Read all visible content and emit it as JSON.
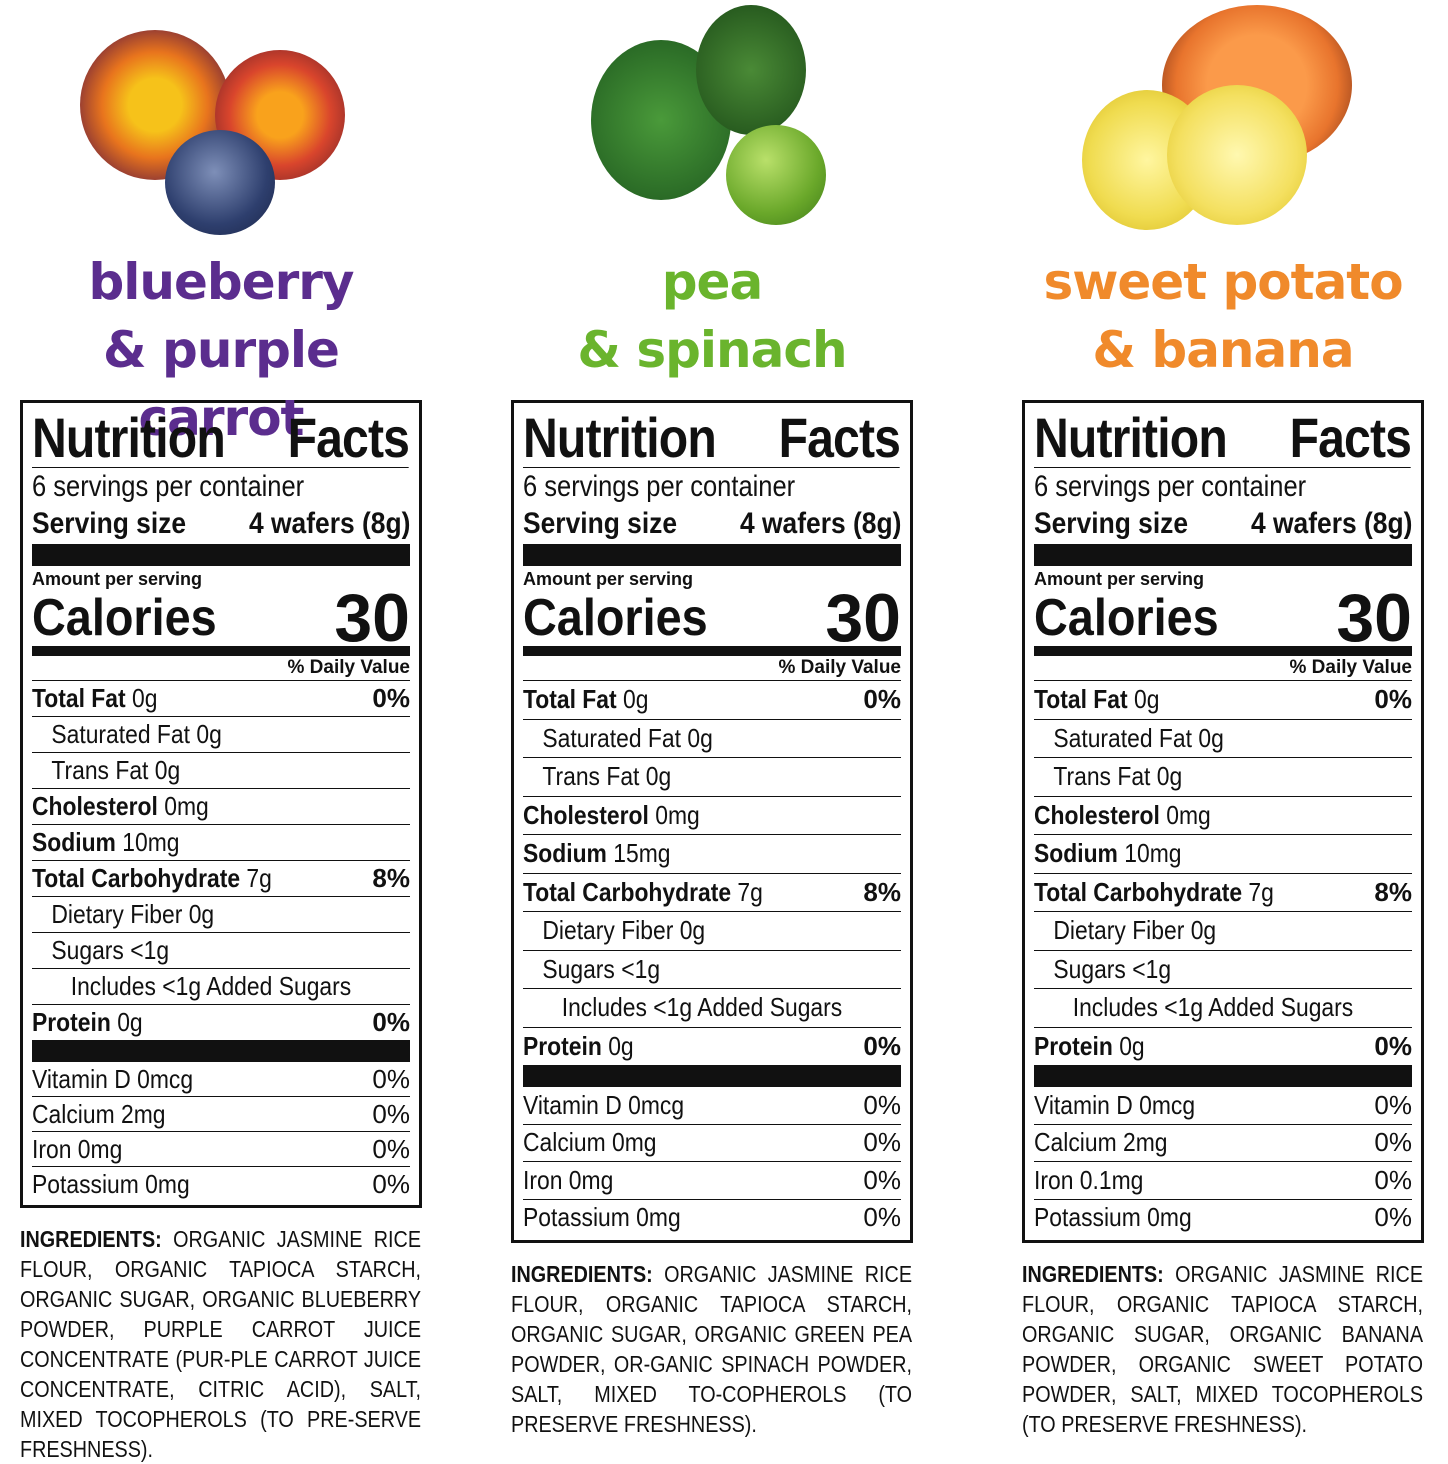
{
  "colors": {
    "blueberry": "#5b2d8e",
    "pea": "#6ab42d",
    "sweet_potato": "#f08a2b"
  },
  "products": [
    {
      "title_line1": "blueberry",
      "title_line2": "& purple carrot",
      "color": "#5b2d8e",
      "image": "blueberry-purple-carrot-photo",
      "label": {
        "heading_left": "Nutrition",
        "heading_right": "Facts",
        "servings": "6 servings per container",
        "serving_size_label": "Serving size",
        "serving_size_value": "4 wafers (8g)",
        "amount_per_serving": "Amount per serving",
        "calories_label": "Calories",
        "calories_value": "30",
        "daily_value_header": "% Daily Value",
        "rows": [
          {
            "name": "Total Fat",
            "amount": "0g",
            "dv": "0%",
            "bold": true,
            "indent": 0
          },
          {
            "name": "Saturated Fat",
            "amount": "0g",
            "dv": "",
            "bold": false,
            "indent": 1
          },
          {
            "name": "Trans Fat",
            "amount": "0g",
            "dv": "",
            "bold": false,
            "indent": 1
          },
          {
            "name": "Cholesterol",
            "amount": "0mg",
            "dv": "",
            "bold": true,
            "indent": 0
          },
          {
            "name": "Sodium",
            "amount": "10mg",
            "dv": "",
            "bold": true,
            "indent": 0
          },
          {
            "name": "Total Carbohydrate",
            "amount": "7g",
            "dv": "8%",
            "bold": true,
            "indent": 0
          },
          {
            "name": "Dietary Fiber",
            "amount": "0g",
            "dv": "",
            "bold": false,
            "indent": 1
          },
          {
            "name": "Sugars",
            "amount": "<1g",
            "dv": "",
            "bold": false,
            "indent": 1
          },
          {
            "name": "Includes <1g Added Sugars",
            "amount": "",
            "dv": "",
            "bold": false,
            "indent": 2
          },
          {
            "name": "Protein",
            "amount": "0g",
            "dv": "0%",
            "bold": true,
            "indent": 0
          }
        ],
        "vitamins": [
          {
            "name": "Vitamin D 0mcg",
            "dv": "0%"
          },
          {
            "name": "Calcium 2mg",
            "dv": "0%"
          },
          {
            "name": "Iron 0mg",
            "dv": "0%"
          },
          {
            "name": "Potassium 0mg",
            "dv": "0%"
          }
        ]
      },
      "ingredients_label": "INGREDIENTS:",
      "ingredients": "ORGANIC JASMINE RICE FLOUR, ORGANIC TAPIOCA STARCH, ORGANIC SUGAR, ORGANIC BLUEBERRY POWDER, PURPLE CARROT JUICE CONCENTRATE (PUR-PLE CARROT JUICE CONCENTRATE, CITRIC ACID), SALT, MIXED TOCOPHEROLS (TO PRE-SERVE FRESHNESS)."
    },
    {
      "title_line1": "pea",
      "title_line2": "& spinach",
      "color": "#6ab42d",
      "image": "pea-spinach-photo",
      "label": {
        "heading_left": "Nutrition",
        "heading_right": "Facts",
        "servings": "6 servings per container",
        "serving_size_label": "Serving size",
        "serving_size_value": "4 wafers (8g)",
        "amount_per_serving": "Amount per serving",
        "calories_label": "Calories",
        "calories_value": "30",
        "daily_value_header": "% Daily Value",
        "rows": [
          {
            "name": "Total Fat",
            "amount": "0g",
            "dv": "0%",
            "bold": true,
            "indent": 0
          },
          {
            "name": "Saturated Fat",
            "amount": "0g",
            "dv": "",
            "bold": false,
            "indent": 1
          },
          {
            "name": "Trans Fat",
            "amount": "0g",
            "dv": "",
            "bold": false,
            "indent": 1
          },
          {
            "name": "Cholesterol",
            "amount": "0mg",
            "dv": "",
            "bold": true,
            "indent": 0
          },
          {
            "name": "Sodium",
            "amount": "15mg",
            "dv": "",
            "bold": true,
            "indent": 0
          },
          {
            "name": "Total Carbohydrate",
            "amount": "7g",
            "dv": "8%",
            "bold": true,
            "indent": 0
          },
          {
            "name": "Dietary Fiber",
            "amount": "0g",
            "dv": "",
            "bold": false,
            "indent": 1
          },
          {
            "name": "Sugars",
            "amount": "<1g",
            "dv": "",
            "bold": false,
            "indent": 1
          },
          {
            "name": "Includes <1g Added Sugars",
            "amount": "",
            "dv": "",
            "bold": false,
            "indent": 2
          },
          {
            "name": "Protein",
            "amount": "0g",
            "dv": "0%",
            "bold": true,
            "indent": 0
          }
        ],
        "vitamins": [
          {
            "name": "Vitamin D 0mcg",
            "dv": "0%"
          },
          {
            "name": "Calcium 0mg",
            "dv": "0%"
          },
          {
            "name": "Iron 0mg",
            "dv": "0%"
          },
          {
            "name": "Potassium 0mg",
            "dv": "0%"
          }
        ]
      },
      "ingredients_label": "INGREDIENTS:",
      "ingredients": "ORGANIC JASMINE RICE FLOUR, ORGANIC TAPIOCA STARCH, ORGANIC SUGAR, ORGANIC GREEN PEA POWDER, OR-GANIC SPINACH POWDER, SALT, MIXED TO-COPHEROLS (TO PRESERVE FRESHNESS)."
    },
    {
      "title_line1": "sweet potato",
      "title_line2": "& banana",
      "color": "#f08a2b",
      "image": "sweet-potato-banana-photo",
      "label": {
        "heading_left": "Nutrition",
        "heading_right": "Facts",
        "servings": "6 servings per container",
        "serving_size_label": "Serving size",
        "serving_size_value": "4 wafers (8g)",
        "amount_per_serving": "Amount per serving",
        "calories_label": "Calories",
        "calories_value": "30",
        "daily_value_header": "% Daily Value",
        "rows": [
          {
            "name": "Total Fat",
            "amount": "0g",
            "dv": "0%",
            "bold": true,
            "indent": 0
          },
          {
            "name": "Saturated Fat",
            "amount": "0g",
            "dv": "",
            "bold": false,
            "indent": 1
          },
          {
            "name": "Trans Fat",
            "amount": "0g",
            "dv": "",
            "bold": false,
            "indent": 1
          },
          {
            "name": "Cholesterol",
            "amount": "0mg",
            "dv": "",
            "bold": true,
            "indent": 0
          },
          {
            "name": "Sodium",
            "amount": "10mg",
            "dv": "",
            "bold": true,
            "indent": 0
          },
          {
            "name": "Total Carbohydrate",
            "amount": "7g",
            "dv": "8%",
            "bold": true,
            "indent": 0
          },
          {
            "name": "Dietary Fiber",
            "amount": "0g",
            "dv": "",
            "bold": false,
            "indent": 1
          },
          {
            "name": "Sugars",
            "amount": "<1g",
            "dv": "",
            "bold": false,
            "indent": 1
          },
          {
            "name": "Includes <1g Added Sugars",
            "amount": "",
            "dv": "",
            "bold": false,
            "indent": 2
          },
          {
            "name": "Protein",
            "amount": "0g",
            "dv": "0%",
            "bold": true,
            "indent": 0
          }
        ],
        "vitamins": [
          {
            "name": "Vitamin D 0mcg",
            "dv": "0%"
          },
          {
            "name": "Calcium 2mg",
            "dv": "0%"
          },
          {
            "name": "Iron 0.1mg",
            "dv": "0%"
          },
          {
            "name": "Potassium 0mg",
            "dv": "0%"
          }
        ]
      },
      "ingredients_label": "INGREDIENTS:",
      "ingredients": "ORGANIC JASMINE RICE FLOUR, ORGANIC TAPIOCA STARCH, ORGANIC SUGAR, ORGANIC BANANA POWDER, ORGANIC SWEET POTATO POWDER, SALT, MIXED TOCOPHEROLS (TO PRESERVE FRESHNESS)."
    }
  ]
}
